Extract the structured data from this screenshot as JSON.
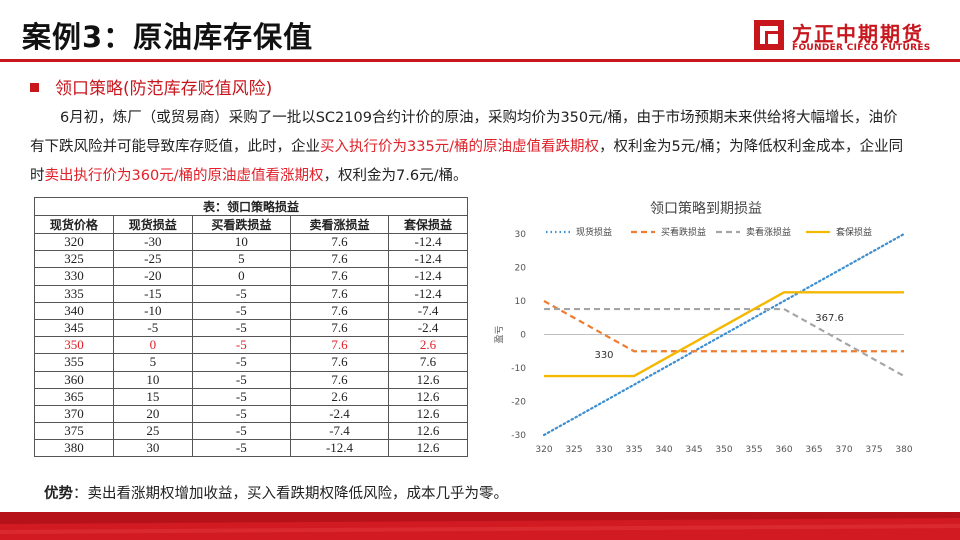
{
  "header": {
    "title": "案例3：原油库存保值",
    "logo_cn": "方正中期期货",
    "logo_en": "FOUNDER CIFCO FUTURES"
  },
  "section": {
    "heading": "领口策略(防范库存贬值风险)"
  },
  "paragraph": {
    "p1": "6月初，炼厂（或贸易商）采购了一批以SC2109合约计价的原油，采购均价为350元/桶，由于市场预期未来供给将大幅增长，油价有下跌风险并可能导致库存贬值，此时，企业",
    "p2_red": "买入执行价为335元/桶的原油虚值看跌期权",
    "p3": "，权利金为5元/桶；为降低权利金成本，企业同时",
    "p4_red": "卖出执行价为360元/桶的原油虚值看涨期权",
    "p5": "，权利金为7.6元/桶。"
  },
  "table": {
    "caption": "表：领口策略损益",
    "headers": [
      "现货价格",
      "现货损益",
      "买看跌损益",
      "卖看涨损益",
      "套保损益"
    ],
    "rows": [
      [
        "320",
        "-30",
        "10",
        "7.6",
        "-12.4"
      ],
      [
        "325",
        "-25",
        "5",
        "7.6",
        "-12.4"
      ],
      [
        "330",
        "-20",
        "0",
        "7.6",
        "-12.4"
      ],
      [
        "335",
        "-15",
        "-5",
        "7.6",
        "-12.4"
      ],
      [
        "340",
        "-10",
        "-5",
        "7.6",
        "-7.4"
      ],
      [
        "345",
        "-5",
        "-5",
        "7.6",
        "-2.4"
      ],
      [
        "350",
        "0",
        "-5",
        "7.6",
        "2.6"
      ],
      [
        "355",
        "5",
        "-5",
        "7.6",
        "7.6"
      ],
      [
        "360",
        "10",
        "-5",
        "7.6",
        "12.6"
      ],
      [
        "365",
        "15",
        "-5",
        "2.6",
        "12.6"
      ],
      [
        "370",
        "20",
        "-5",
        "-2.4",
        "12.6"
      ],
      [
        "375",
        "25",
        "-5",
        "-7.4",
        "12.6"
      ],
      [
        "380",
        "30",
        "-5",
        "-12.4",
        "12.6"
      ]
    ],
    "highlight_row_index": 6
  },
  "chart_data": {
    "type": "line",
    "title": "领口策略到期损益",
    "xlabel": "",
    "ylabel": "盈亏",
    "x": [
      320,
      325,
      330,
      335,
      340,
      345,
      350,
      355,
      360,
      365,
      370,
      375,
      380
    ],
    "ylim": [
      -30,
      30
    ],
    "yticks": [
      -30,
      -20,
      -10,
      0,
      10,
      20,
      30
    ],
    "legend_position": "top",
    "series": [
      {
        "name": "现货损益",
        "color": "#3d8fd1",
        "dash": "dotted",
        "values": [
          -30,
          -25,
          -20,
          -15,
          -10,
          -5,
          0,
          5,
          10,
          15,
          20,
          25,
          30
        ]
      },
      {
        "name": "买看跌损益",
        "color": "#ee7d31",
        "dash": "dashed",
        "values": [
          10,
          5,
          0,
          -5,
          -5,
          -5,
          -5,
          -5,
          -5,
          -5,
          -5,
          -5,
          -5
        ]
      },
      {
        "name": "卖看涨损益",
        "color": "#a5a5a5",
        "dash": "dashed",
        "values": [
          7.6,
          7.6,
          7.6,
          7.6,
          7.6,
          7.6,
          7.6,
          7.6,
          7.6,
          2.6,
          -2.4,
          -7.4,
          -12.4
        ]
      },
      {
        "name": "套保损益",
        "color": "#f5b800",
        "dash": "solid",
        "values": [
          -12.4,
          -12.4,
          -12.4,
          -12.4,
          -7.4,
          -2.4,
          2.6,
          7.6,
          12.6,
          12.6,
          12.6,
          12.6,
          12.6
        ]
      }
    ],
    "annotations": [
      {
        "text": "330",
        "x": 330,
        "y": -7
      },
      {
        "text": "367.6",
        "x": 367.6,
        "y": 4
      }
    ]
  },
  "note": {
    "label": "优势",
    "text": "：卖出看涨期权增加收益，买入看跌期权降低风险，成本几乎为零。"
  }
}
